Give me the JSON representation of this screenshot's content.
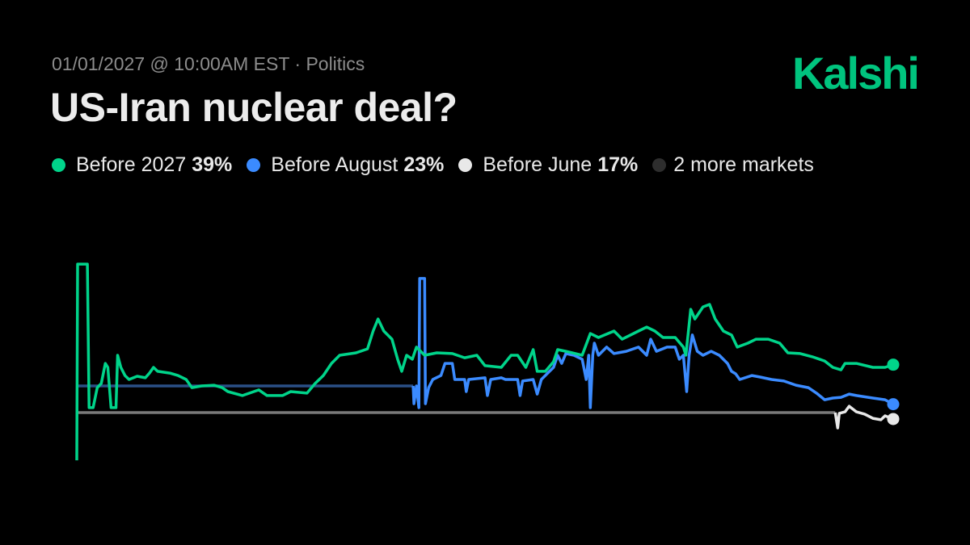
{
  "header": {
    "meta": "01/01/2027 @ 10:00AM EST · Politics",
    "title": "US-Iran nuclear deal?",
    "logo": "Kalshi",
    "logo_color": "#00c47e"
  },
  "legend": [
    {
      "label": "Before 2027",
      "value": "39%",
      "color": "#00d48a"
    },
    {
      "label": "Before August",
      "value": "23%",
      "color": "#3b8bff"
    },
    {
      "label": "Before June",
      "value": "17%",
      "color": "#e8e8e8"
    },
    {
      "label": "2 more markets",
      "value": "",
      "color": "#2e2e2e"
    }
  ],
  "chart_data": {
    "type": "line",
    "title": "",
    "xlabel": "",
    "ylabel": "",
    "ylim": [
      0,
      100
    ],
    "xlim": [
      0,
      100
    ],
    "grid": false,
    "axes_visible": false,
    "series": [
      {
        "name": "Before 2027",
        "color": "#00d48a",
        "pre_listing_color": "#00d48a",
        "listed_from": 0,
        "points": [
          [
            0,
            0.3
          ],
          [
            0.1,
            79.7
          ],
          [
            1.3,
            79.7
          ],
          [
            1.5,
            21.6
          ],
          [
            2.0,
            21.6
          ],
          [
            2.5,
            29.7
          ],
          [
            3.0,
            31.4
          ],
          [
            3.5,
            39.5
          ],
          [
            3.8,
            37.9
          ],
          [
            4.2,
            21.6
          ],
          [
            4.8,
            21.6
          ],
          [
            5.0,
            42.8
          ],
          [
            5.4,
            37.9
          ],
          [
            5.9,
            34.6
          ],
          [
            6.4,
            33.0
          ],
          [
            7.4,
            34.3
          ],
          [
            8.4,
            33.7
          ],
          [
            8.9,
            35.6
          ],
          [
            9.4,
            37.9
          ],
          [
            9.9,
            36.3
          ],
          [
            11.4,
            35.6
          ],
          [
            12.4,
            34.6
          ],
          [
            13.4,
            33.0
          ],
          [
            14.1,
            29.7
          ],
          [
            15.3,
            30.4
          ],
          [
            16.8,
            30.7
          ],
          [
            17.8,
            29.7
          ],
          [
            18.5,
            28.1
          ],
          [
            20.3,
            26.5
          ],
          [
            22.3,
            28.8
          ],
          [
            23.3,
            26.5
          ],
          [
            25.2,
            26.5
          ],
          [
            26.2,
            28.1
          ],
          [
            28.2,
            27.5
          ],
          [
            29.2,
            31.4
          ],
          [
            30.2,
            34.6
          ],
          [
            31.2,
            39.5
          ],
          [
            32.2,
            42.8
          ],
          [
            34.2,
            43.8
          ],
          [
            35.6,
            45.4
          ],
          [
            36.3,
            52.6
          ],
          [
            36.9,
            57.5
          ],
          [
            37.6,
            52.6
          ],
          [
            38.6,
            49.3
          ],
          [
            39.3,
            41.2
          ],
          [
            39.8,
            36.3
          ],
          [
            40.4,
            42.8
          ],
          [
            41.1,
            41.2
          ],
          [
            41.6,
            46.1
          ],
          [
            42.6,
            42.8
          ],
          [
            44.1,
            43.8
          ],
          [
            46.0,
            43.5
          ],
          [
            47.5,
            41.8
          ],
          [
            49.0,
            42.8
          ],
          [
            50.0,
            38.6
          ],
          [
            52.0,
            37.9
          ],
          [
            53.2,
            42.8
          ],
          [
            54.0,
            42.8
          ],
          [
            55.0,
            37.9
          ],
          [
            55.9,
            45.1
          ],
          [
            56.4,
            36.3
          ],
          [
            57.4,
            36.3
          ],
          [
            58.4,
            40.2
          ],
          [
            58.9,
            45.1
          ],
          [
            59.9,
            44.4
          ],
          [
            61.9,
            42.8
          ],
          [
            62.9,
            51.6
          ],
          [
            63.9,
            50.0
          ],
          [
            65.8,
            52.6
          ],
          [
            66.8,
            49.3
          ],
          [
            68.8,
            52.6
          ],
          [
            69.8,
            54.2
          ],
          [
            70.8,
            52.6
          ],
          [
            71.8,
            50.0
          ],
          [
            73.3,
            50.0
          ],
          [
            74.3,
            46.1
          ],
          [
            74.6,
            42.8
          ],
          [
            75.2,
            61.4
          ],
          [
            75.7,
            57.5
          ],
          [
            76.7,
            62.4
          ],
          [
            77.5,
            63.4
          ],
          [
            78.2,
            57.5
          ],
          [
            79.2,
            52.6
          ],
          [
            80.2,
            51.0
          ],
          [
            80.9,
            46.1
          ],
          [
            82.2,
            47.7
          ],
          [
            83.2,
            49.3
          ],
          [
            84.7,
            49.3
          ],
          [
            86.1,
            47.7
          ],
          [
            87.1,
            43.8
          ],
          [
            88.6,
            43.5
          ],
          [
            90.1,
            42.2
          ],
          [
            91.6,
            40.5
          ],
          [
            92.6,
            37.9
          ],
          [
            93.6,
            36.9
          ],
          [
            94.1,
            39.5
          ],
          [
            95.5,
            39.5
          ],
          [
            97.5,
            37.9
          ],
          [
            99.0,
            37.9
          ],
          [
            100,
            39
          ]
        ]
      },
      {
        "name": "Before August",
        "color": "#3b8bff",
        "pre_listing_color": "#2a4f86",
        "listed_from": 41.2,
        "points": [
          [
            0,
            30.4
          ],
          [
            41.2,
            30.4
          ],
          [
            41.3,
            23.2
          ],
          [
            41.6,
            30.4
          ],
          [
            41.9,
            21.6
          ],
          [
            42.0,
            73.9
          ],
          [
            42.6,
            73.9
          ],
          [
            42.7,
            23.2
          ],
          [
            43.1,
            29.7
          ],
          [
            43.6,
            33.0
          ],
          [
            44.6,
            34.6
          ],
          [
            45.1,
            39.5
          ],
          [
            46.0,
            39.5
          ],
          [
            46.3,
            33.0
          ],
          [
            47.5,
            33.0
          ],
          [
            47.7,
            28.1
          ],
          [
            48.0,
            33.0
          ],
          [
            50.0,
            33.7
          ],
          [
            50.3,
            26.5
          ],
          [
            50.7,
            33.0
          ],
          [
            52.0,
            33.7
          ],
          [
            52.5,
            33.0
          ],
          [
            54.0,
            33.0
          ],
          [
            54.3,
            26.5
          ],
          [
            54.6,
            32.4
          ],
          [
            55.9,
            33.0
          ],
          [
            56.4,
            27.1
          ],
          [
            56.9,
            33.0
          ],
          [
            57.9,
            36.3
          ],
          [
            58.4,
            37.9
          ],
          [
            58.9,
            42.8
          ],
          [
            59.4,
            39.5
          ],
          [
            59.9,
            43.5
          ],
          [
            60.9,
            42.8
          ],
          [
            61.9,
            41.2
          ],
          [
            62.4,
            33.0
          ],
          [
            62.7,
            42.8
          ],
          [
            62.9,
            21.6
          ],
          [
            63.2,
            42.8
          ],
          [
            63.4,
            47.7
          ],
          [
            63.9,
            42.8
          ],
          [
            64.9,
            46.1
          ],
          [
            65.8,
            43.5
          ],
          [
            67.3,
            44.4
          ],
          [
            68.8,
            46.1
          ],
          [
            69.8,
            42.8
          ],
          [
            70.3,
            49.3
          ],
          [
            71.0,
            44.4
          ],
          [
            72.3,
            46.1
          ],
          [
            73.3,
            46.1
          ],
          [
            73.8,
            41.2
          ],
          [
            74.3,
            42.8
          ],
          [
            74.7,
            28.1
          ],
          [
            75.0,
            42.8
          ],
          [
            75.4,
            51.0
          ],
          [
            76.0,
            44.4
          ],
          [
            76.7,
            42.8
          ],
          [
            77.7,
            44.4
          ],
          [
            78.7,
            42.8
          ],
          [
            79.7,
            39.5
          ],
          [
            80.2,
            36.3
          ],
          [
            80.7,
            35.3
          ],
          [
            81.2,
            33.0
          ],
          [
            82.7,
            34.6
          ],
          [
            83.7,
            34.0
          ],
          [
            85.1,
            33.0
          ],
          [
            86.6,
            32.4
          ],
          [
            88.1,
            30.7
          ],
          [
            89.6,
            29.7
          ],
          [
            90.6,
            27.5
          ],
          [
            91.6,
            24.8
          ],
          [
            92.6,
            25.5
          ],
          [
            93.6,
            25.8
          ],
          [
            94.6,
            27.1
          ],
          [
            95.5,
            26.5
          ],
          [
            97.5,
            25.5
          ],
          [
            99.0,
            24.8
          ],
          [
            100,
            23
          ]
        ]
      },
      {
        "name": "Before June",
        "color": "#e8e8e8",
        "pre_listing_color": "#7a7a7a",
        "listed_from": 92.9,
        "points": [
          [
            0,
            19.6
          ],
          [
            92.9,
            19.6
          ],
          [
            93.2,
            13.4
          ],
          [
            93.4,
            19.3
          ],
          [
            94.1,
            19.9
          ],
          [
            94.6,
            22.2
          ],
          [
            95.5,
            19.9
          ],
          [
            96.5,
            19.0
          ],
          [
            97.5,
            17.3
          ],
          [
            98.5,
            16.7
          ],
          [
            99.0,
            18.3
          ],
          [
            100,
            17
          ]
        ]
      }
    ]
  }
}
